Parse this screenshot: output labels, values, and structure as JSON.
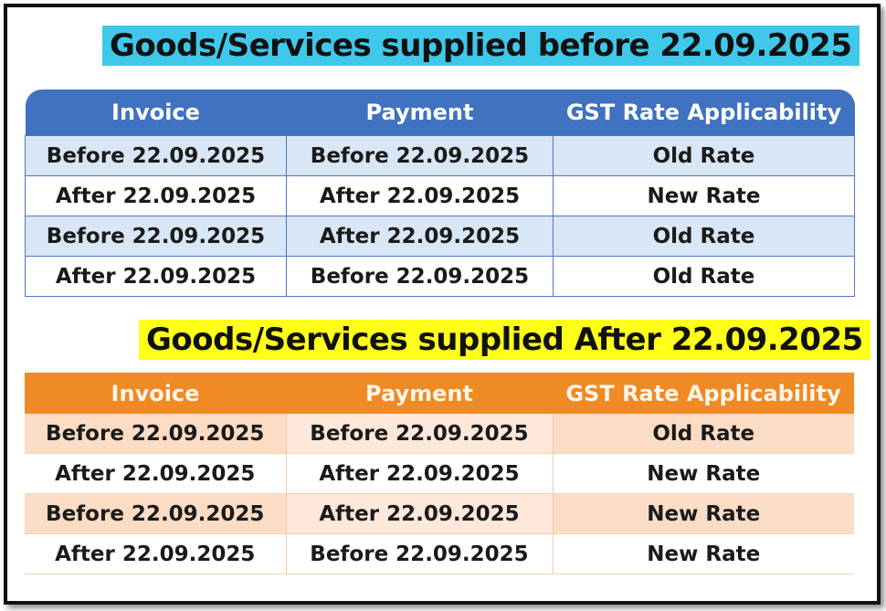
{
  "section_before": {
    "title": "Goods/Services supplied before 22.09.2025",
    "headers": [
      "Invoice",
      "Payment",
      "GST Rate Applicability"
    ],
    "rows": [
      [
        "Before 22.09.2025",
        "Before 22.09.2025",
        "Old Rate"
      ],
      [
        "After 22.09.2025",
        "After 22.09.2025",
        "New Rate"
      ],
      [
        "Before 22.09.2025",
        "After 22.09.2025",
        "Old Rate"
      ],
      [
        "After 22.09.2025",
        "Before 22.09.2025",
        "Old Rate"
      ]
    ],
    "colors": {
      "title_bg": "#3fc8ea",
      "header_bg": "#3f72c0",
      "row_shade": "#d8e6f5"
    }
  },
  "section_after": {
    "title": "Goods/Services supplied After 22.09.2025",
    "headers": [
      "Invoice",
      "Payment",
      "GST Rate Applicability"
    ],
    "rows": [
      [
        "Before 22.09.2025",
        "Before 22.09.2025",
        "Old Rate"
      ],
      [
        "After 22.09.2025",
        "After 22.09.2025",
        "New Rate"
      ],
      [
        "Before 22.09.2025",
        "After 22.09.2025",
        "New Rate"
      ],
      [
        "After 22.09.2025",
        "Before 22.09.2025",
        "New Rate"
      ]
    ],
    "colors": {
      "title_bg": "#ffff1a",
      "header_bg": "#f08a24",
      "row_shade": "#fbdcc4"
    }
  }
}
